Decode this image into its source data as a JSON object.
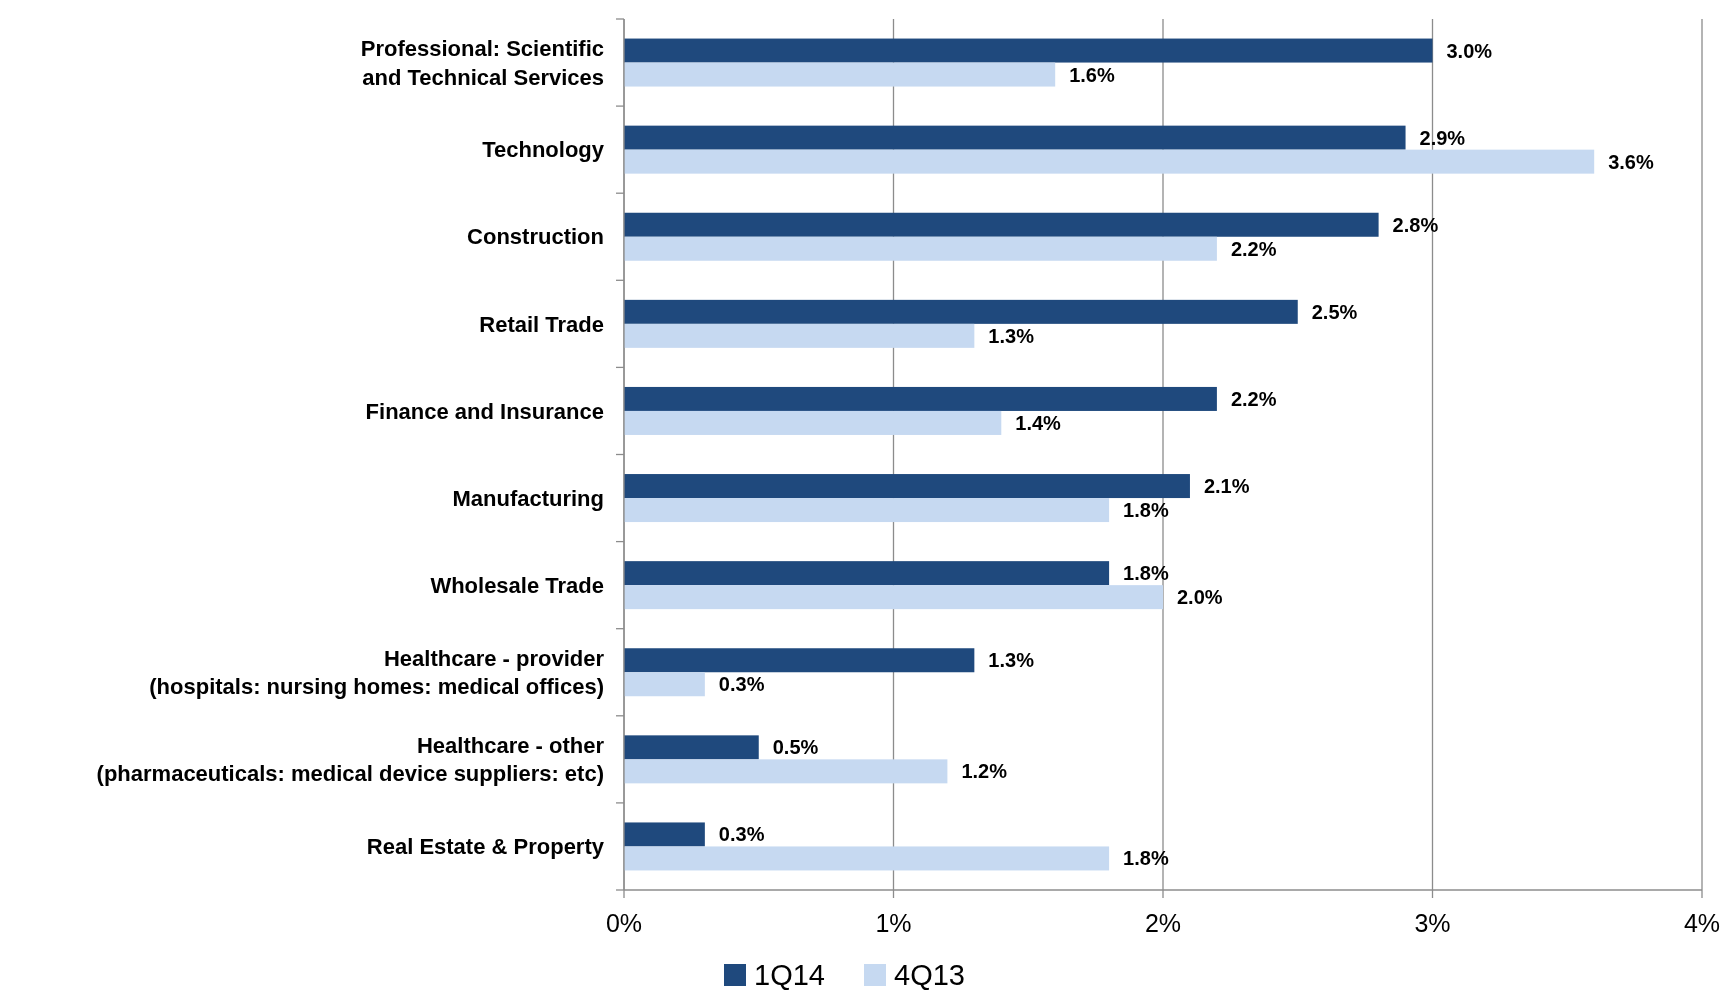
{
  "chart_data": {
    "type": "bar",
    "orientation": "horizontal",
    "categories": [
      "Professional: Scientific and Technical Services",
      "Technology",
      "Construction",
      "Retail Trade",
      "Finance and Insurance",
      "Manufacturing",
      "Wholesale Trade",
      "Healthcare - provider (hospitals: nursing homes: medical offices)",
      "Healthcare - other (pharmaceuticals: medical device suppliers: etc)",
      "Real Estate & Property"
    ],
    "series": [
      {
        "name": "1Q14",
        "color": "#1f497d",
        "values": [
          3.0,
          2.9,
          2.8,
          2.5,
          2.2,
          2.1,
          1.8,
          1.3,
          0.5,
          0.3
        ]
      },
      {
        "name": "4Q13",
        "color": "#c6d9f1",
        "values": [
          1.6,
          3.6,
          2.2,
          1.3,
          1.4,
          1.8,
          2.0,
          0.3,
          1.2,
          1.8
        ]
      }
    ],
    "value_labels": [
      [
        "3.0%",
        "2.9%",
        "2.8%",
        "2.5%",
        "2.2%",
        "2.1%",
        "1.8%",
        "1.3%",
        "0.5%",
        "0.3%"
      ],
      [
        "1.6%",
        "3.6%",
        "2.2%",
        "1.3%",
        "1.4%",
        "1.8%",
        "2.0%",
        "0.3%",
        "1.2%",
        "1.8%"
      ]
    ],
    "xlim": [
      0,
      4
    ],
    "xticks": [
      {
        "value": 0,
        "label": "0%"
      },
      {
        "value": 1,
        "label": "1%"
      },
      {
        "value": 2,
        "label": "2%"
      },
      {
        "value": 3,
        "label": "3%"
      },
      {
        "value": 4,
        "label": "4%"
      }
    ],
    "grid": "x",
    "legend": "bottom"
  }
}
